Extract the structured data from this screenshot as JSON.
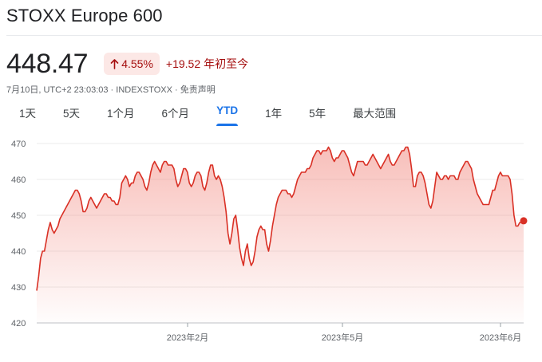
{
  "header": {
    "title": "STOXX Europe 600"
  },
  "quote": {
    "price": "448.47",
    "change_percent": "4.55%",
    "change_value": "+19.52",
    "change_period": "年初至今",
    "meta": "7月10日, UTC+2 23:03:03 · INDEXSTOXX · 免责声明"
  },
  "colors": {
    "line": "#d93025",
    "fill_top": "#f28b82",
    "positive_bg": "#fce8e6",
    "positive_text": "#a50e0e",
    "accent": "#1a73e8"
  },
  "tabs": [
    {
      "label": "1天",
      "active": false
    },
    {
      "label": "5天",
      "active": false
    },
    {
      "label": "1个月",
      "active": false
    },
    {
      "label": "6个月",
      "active": false
    },
    {
      "label": "YTD",
      "active": true
    },
    {
      "label": "1年",
      "active": false
    },
    {
      "label": "5年",
      "active": false
    },
    {
      "label": "最大范围",
      "active": false
    }
  ],
  "chart_data": {
    "type": "area",
    "title": "",
    "xlabel": "",
    "ylabel": "",
    "ylim": [
      420,
      470
    ],
    "yticks": [
      420,
      430,
      440,
      450,
      460,
      470
    ],
    "grid": true,
    "x_ticks": [
      "2023年2月",
      "2023年5月",
      "2023年6月"
    ],
    "series": [
      {
        "values": [
          429,
          433,
          438,
          440,
          440,
          443,
          446,
          448,
          446,
          445,
          446,
          447,
          449,
          450,
          451,
          452,
          453,
          454,
          455,
          456,
          457,
          457,
          456,
          454,
          451,
          451,
          452,
          454,
          455,
          454,
          453,
          452,
          453,
          454,
          455,
          456,
          456,
          455,
          455,
          454,
          454,
          453,
          453,
          455,
          459,
          460,
          461,
          460,
          458,
          459,
          459,
          461,
          462,
          462,
          461,
          460,
          458,
          457,
          459,
          462,
          464,
          465,
          464,
          463,
          462,
          464,
          465,
          465,
          464,
          464,
          464,
          463,
          460,
          458,
          459,
          461,
          463,
          463,
          462,
          459,
          458,
          459,
          461,
          462,
          462,
          461,
          458,
          457,
          459,
          462,
          464,
          464,
          461,
          460,
          461,
          460,
          458,
          455,
          451,
          445,
          442,
          445,
          449,
          450,
          446,
          441,
          438,
          436,
          440,
          442,
          438,
          436,
          437,
          440,
          444,
          446,
          447,
          446,
          446,
          442,
          440,
          443,
          447,
          450,
          453,
          455,
          456,
          457,
          457,
          457,
          456,
          456,
          455,
          456,
          458,
          460,
          461,
          462,
          462,
          462,
          463,
          463,
          464,
          466,
          467,
          468,
          468,
          467,
          468,
          468,
          468,
          469,
          468,
          466,
          465,
          466,
          466,
          467,
          468,
          468,
          467,
          466,
          464,
          462,
          461,
          463,
          465,
          465,
          465,
          465,
          464,
          464,
          465,
          466,
          467,
          466,
          465,
          464,
          463,
          464,
          465,
          466,
          467,
          465,
          464,
          464,
          465,
          466,
          467,
          468,
          468,
          469,
          469,
          467,
          463,
          458,
          458,
          461,
          462,
          462,
          461,
          459,
          456,
          453,
          452,
          454,
          458,
          462,
          461,
          460,
          460,
          461,
          461,
          460,
          461,
          461,
          461,
          460,
          460,
          462,
          463,
          464,
          465,
          465,
          464,
          463,
          460,
          458,
          456,
          455,
          454,
          453,
          453,
          453,
          453,
          455,
          457,
          457,
          459,
          461,
          462,
          461,
          461,
          461,
          461,
          460,
          456,
          450,
          447,
          447,
          448,
          448,
          448.47
        ]
      }
    ]
  }
}
